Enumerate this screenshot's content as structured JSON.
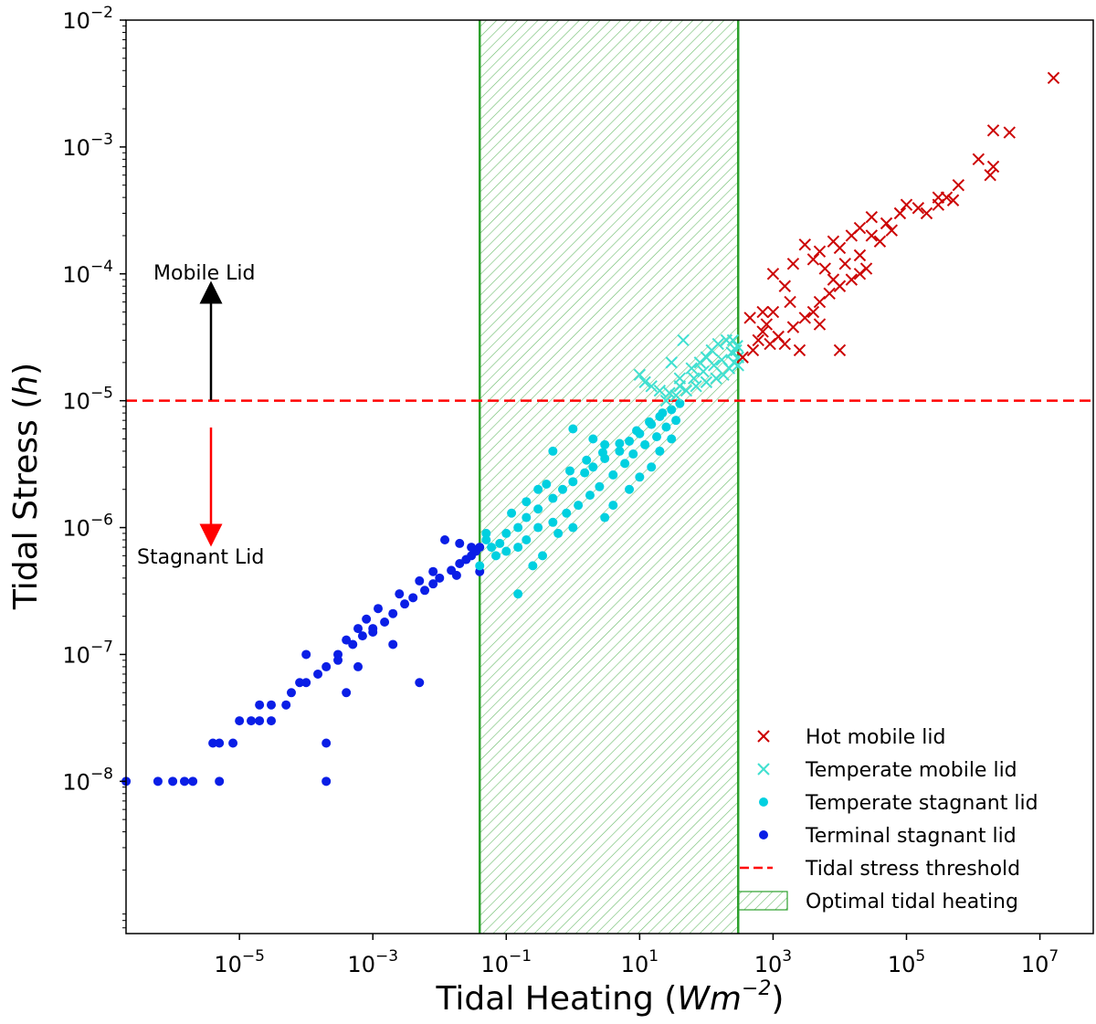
{
  "chart_data": {
    "type": "scatter",
    "xscale": "log",
    "yscale": "log",
    "xlim_exp": [
      -6.7,
      7.8
    ],
    "ylim_exp": [
      -9.2,
      -2
    ],
    "xlabel": {
      "main": "Tidal Heating (",
      "unit_base": "Wm",
      "unit_exp": "−2",
      "close": ")"
    },
    "ylabel": {
      "main": "Tidal Stress (",
      "var": "h",
      "close": ")"
    },
    "xticks": [
      {
        "base": "10",
        "exp": "−5",
        "value": 1e-05
      },
      {
        "base": "10",
        "exp": "−3",
        "value": 0.001
      },
      {
        "base": "10",
        "exp": "−1",
        "value": 0.1
      },
      {
        "base": "10",
        "exp": "1",
        "value": 10.0
      },
      {
        "base": "10",
        "exp": "3",
        "value": 1000.0
      },
      {
        "base": "10",
        "exp": "5",
        "value": 100000.0
      },
      {
        "base": "10",
        "exp": "7",
        "value": 10000000.0
      }
    ],
    "yticks": [
      {
        "base": "10",
        "exp": "−8",
        "value": 1e-08
      },
      {
        "base": "10",
        "exp": "−7",
        "value": 1e-07
      },
      {
        "base": "10",
        "exp": "−6",
        "value": 1e-06
      },
      {
        "base": "10",
        "exp": "−5",
        "value": 1e-05
      },
      {
        "base": "10",
        "exp": "−4",
        "value": 0.0001
      },
      {
        "base": "10",
        "exp": "−3",
        "value": 0.001
      },
      {
        "base": "10",
        "exp": "−2",
        "value": 0.01
      }
    ],
    "threshold": {
      "y": 1e-05,
      "label": "Tidal stress threshold",
      "color": "#ff0000"
    },
    "optimal_band": {
      "x_min": 0.04,
      "x_max": 300,
      "label": "Optimal tidal heating",
      "color": "#2ca02c"
    },
    "annotations": {
      "mobile": {
        "text": "Mobile Lid",
        "color": "#000000"
      },
      "stagnant": {
        "text": "Stagnant Lid",
        "color": "#ff0000"
      }
    },
    "series": [
      {
        "name": "Hot mobile lid",
        "marker": "x",
        "color": "#cc0000",
        "points": [
          [
            16000000.0,
            0.0035
          ],
          [
            3500000.0,
            0.0013
          ],
          [
            2000000.0,
            0.00135
          ],
          [
            1200000.0,
            0.0008
          ],
          [
            2000000.0,
            0.0007
          ],
          [
            1800000.0,
            0.0006
          ],
          [
            600000.0,
            0.0005
          ],
          [
            300000.0,
            0.0004
          ],
          [
            400000.0,
            0.0004
          ],
          [
            500000.0,
            0.00038
          ],
          [
            300000.0,
            0.00035
          ],
          [
            200000.0,
            0.0003
          ],
          [
            100000.0,
            0.00035
          ],
          [
            150000.0,
            0.00033
          ],
          [
            80000.0,
            0.0003
          ],
          [
            50000.0,
            0.00025
          ],
          [
            30000.0,
            0.00028
          ],
          [
            20000.0,
            0.00023
          ],
          [
            15000.0,
            0.0002
          ],
          [
            8000.0,
            0.00018
          ],
          [
            5000.0,
            0.00015
          ],
          [
            10000.0,
            0.00016
          ],
          [
            30000.0,
            0.0002
          ],
          [
            60000.0,
            0.00022
          ],
          [
            3000.0,
            0.00017
          ],
          [
            4000.0,
            0.00013
          ],
          [
            2000.0,
            0.00012
          ],
          [
            1000.0,
            0.0001
          ],
          [
            8000.0,
            9e-05
          ],
          [
            6000.0,
            0.00011
          ],
          [
            12000.0,
            0.00012
          ],
          [
            20000.0,
            0.00014
          ],
          [
            40000.0,
            0.00018
          ],
          [
            1500.0,
            8e-05
          ],
          [
            1000.0,
            5e-05
          ],
          [
            800,
            4e-05
          ],
          [
            700,
            3.5e-05
          ],
          [
            600,
            3e-05
          ],
          [
            500,
            2.5e-05
          ],
          [
            900,
            2.8e-05
          ],
          [
            1200.0,
            3.2e-05
          ],
          [
            2000.0,
            3.8e-05
          ],
          [
            3000.0,
            4.5e-05
          ],
          [
            4000.0,
            5e-05
          ],
          [
            5000.0,
            6e-05
          ],
          [
            7000.0,
            7e-05
          ],
          [
            10000.0,
            8e-05
          ],
          [
            15000.0,
            9e-05
          ],
          [
            20000.0,
            0.0001
          ],
          [
            25000.0,
            0.00011
          ],
          [
            700,
            5e-05
          ],
          [
            450,
            4.5e-05
          ],
          [
            1800.0,
            6e-05
          ],
          [
            2500.0,
            2.5e-05
          ],
          [
            10000.0,
            2.5e-05
          ],
          [
            5000.0,
            4e-05
          ],
          [
            350.0,
            2.2e-05
          ],
          [
            1500.0,
            2.8e-05
          ]
        ]
      },
      {
        "name": "Temperate mobile lid",
        "marker": "x",
        "color": "#40e0d0",
        "points": [
          [
            40,
            1.5e-05
          ],
          [
            60,
            1.8e-05
          ],
          [
            80,
            2e-05
          ],
          [
            100,
            2.2e-05
          ],
          [
            120,
            2.5e-05
          ],
          [
            150,
            2.8e-05
          ],
          [
            200,
            3e-05
          ],
          [
            250,
            3e-05
          ],
          [
            280,
            2.5e-05
          ],
          [
            300,
            2.2e-05
          ],
          [
            260,
            2e-05
          ],
          [
            220,
            1.8e-05
          ],
          [
            180,
            1.6e-05
          ],
          [
            140,
            1.5e-05
          ],
          [
            100,
            1.4e-05
          ],
          [
            70,
            1.3e-05
          ],
          [
            50,
            1.2e-05
          ],
          [
            35,
            1.1e-05
          ],
          [
            25,
            1e-05
          ],
          [
            30,
            2e-05
          ],
          [
            45,
            3e-05
          ],
          [
            10,
            1.6e-05
          ],
          [
            12,
            1.4e-05
          ],
          [
            15,
            1.3e-05
          ],
          [
            20,
            1.2e-05
          ],
          [
            300,
            1.9e-05
          ],
          [
            290,
            2.7e-05
          ],
          [
            240,
            2.4e-05
          ],
          [
            170,
            2.1e-05
          ],
          [
            130,
            1.9e-05
          ],
          [
            90,
            1.7e-05
          ],
          [
            65,
            1.5e-05
          ],
          [
            40,
            1.3e-05
          ],
          [
            28,
            1.15e-05
          ]
        ]
      },
      {
        "name": "Temperate stagnant lid",
        "marker": "o",
        "color": "#00d0e0",
        "points": [
          [
            0.05,
            8e-07
          ],
          [
            0.06,
            7e-07
          ],
          [
            0.08,
            7.5e-07
          ],
          [
            0.1,
            9e-07
          ],
          [
            0.15,
            1e-06
          ],
          [
            0.2,
            1.2e-06
          ],
          [
            0.3,
            1.4e-06
          ],
          [
            0.5,
            1.7e-06
          ],
          [
            0.7,
            2e-06
          ],
          [
            1,
            2.3e-06
          ],
          [
            1.5,
            2.7e-06
          ],
          [
            2,
            3e-06
          ],
          [
            3,
            3.5e-06
          ],
          [
            5,
            4e-06
          ],
          [
            7,
            4.8e-06
          ],
          [
            10,
            5.5e-06
          ],
          [
            15,
            6.5e-06
          ],
          [
            20,
            7.5e-06
          ],
          [
            30,
            8.5e-06
          ],
          [
            40,
            9.5e-06
          ],
          [
            0.07,
            6e-07
          ],
          [
            0.1,
            6.5e-07
          ],
          [
            0.15,
            7e-07
          ],
          [
            0.2,
            8e-07
          ],
          [
            0.25,
            5e-07
          ],
          [
            0.35,
            6e-07
          ],
          [
            0.5,
            1.1e-06
          ],
          [
            0.8,
            1.3e-06
          ],
          [
            1.2,
            1.5e-06
          ],
          [
            1.8,
            1.8e-06
          ],
          [
            2.5,
            2.1e-06
          ],
          [
            4,
            2.6e-06
          ],
          [
            6,
            3.2e-06
          ],
          [
            8,
            3.8e-06
          ],
          [
            12,
            4.5e-06
          ],
          [
            18,
            5.2e-06
          ],
          [
            25,
            6.2e-06
          ],
          [
            35,
            7e-06
          ],
          [
            0.3,
            2e-06
          ],
          [
            0.5,
            4e-06
          ],
          [
            1,
            6e-06
          ],
          [
            2,
            5e-06
          ],
          [
            3,
            4.5e-06
          ],
          [
            0.15,
            3e-07
          ],
          [
            0.05,
            9e-07
          ],
          [
            0.04,
            5e-07
          ],
          [
            0.3,
            1e-06
          ],
          [
            0.6,
            9e-07
          ],
          [
            1,
            1e-06
          ],
          [
            4,
            1.5e-06
          ],
          [
            15,
            3e-06
          ],
          [
            10,
            2.5e-06
          ],
          [
            20,
            4e-06
          ],
          [
            0.2,
            1.6e-06
          ],
          [
            0.4,
            2.2e-06
          ],
          [
            0.9,
            2.8e-06
          ],
          [
            1.6,
            3.4e-06
          ],
          [
            2.8,
            3.9e-06
          ],
          [
            5,
            4.6e-06
          ],
          [
            9,
            5.8e-06
          ],
          [
            14,
            6.8e-06
          ],
          [
            22,
            8e-06
          ],
          [
            0.12,
            1.3e-06
          ],
          [
            7,
            2e-06
          ],
          [
            30,
            5e-06
          ],
          [
            3,
            1.2e-06
          ]
        ]
      },
      {
        "name": "Terminal stagnant lid",
        "marker": "o",
        "color": "#0a1ee6",
        "points": [
          [
            2e-07,
            1e-08
          ],
          [
            6e-07,
            1e-08
          ],
          [
            1e-06,
            1e-08
          ],
          [
            1.5e-06,
            1e-08
          ],
          [
            2e-06,
            1e-08
          ],
          [
            5e-06,
            1e-08
          ],
          [
            0.0002,
            1e-08
          ],
          [
            4e-06,
            2e-08
          ],
          [
            5e-06,
            2e-08
          ],
          [
            8e-06,
            2e-08
          ],
          [
            0.0002,
            2e-08
          ],
          [
            1e-05,
            3e-08
          ],
          [
            1.5e-05,
            3e-08
          ],
          [
            2e-05,
            3e-08
          ],
          [
            3e-05,
            3e-08
          ],
          [
            2e-05,
            4e-08
          ],
          [
            3e-05,
            4e-08
          ],
          [
            5e-05,
            4e-08
          ],
          [
            6e-05,
            5e-08
          ],
          [
            8e-05,
            6e-08
          ],
          [
            0.0001,
            6e-08
          ],
          [
            0.00015,
            7e-08
          ],
          [
            0.0002,
            8e-08
          ],
          [
            0.0003,
            9e-08
          ],
          [
            0.0003,
            1e-07
          ],
          [
            0.0005,
            1.2e-07
          ],
          [
            0.0007,
            1.4e-07
          ],
          [
            0.001,
            1.6e-07
          ],
          [
            0.0015,
            1.8e-07
          ],
          [
            0.002,
            2.1e-07
          ],
          [
            0.003,
            2.5e-07
          ],
          [
            0.004,
            2.8e-07
          ],
          [
            0.006,
            3.2e-07
          ],
          [
            0.008,
            3.6e-07
          ],
          [
            0.01,
            4e-07
          ],
          [
            0.015,
            4.6e-07
          ],
          [
            0.02,
            5.2e-07
          ],
          [
            0.025,
            5.6e-07
          ],
          [
            0.03,
            6e-07
          ],
          [
            0.035,
            6.5e-07
          ],
          [
            0.04,
            7e-07
          ],
          [
            0.0004,
            1.3e-07
          ],
          [
            0.0006,
            1.6e-07
          ],
          [
            0.0008,
            1.9e-07
          ],
          [
            0.0012,
            2.3e-07
          ],
          [
            0.0025,
            3e-07
          ],
          [
            0.005,
            3.8e-07
          ],
          [
            0.012,
            8e-07
          ],
          [
            0.02,
            7.5e-07
          ],
          [
            0.03,
            7e-07
          ],
          [
            0.002,
            1.2e-07
          ],
          [
            0.001,
            1.5e-07
          ],
          [
            0.0001,
            1e-07
          ],
          [
            0.0004,
            5e-08
          ],
          [
            0.0006,
            8e-08
          ],
          [
            0.005,
            6e-08
          ],
          [
            0.008,
            4.5e-07
          ],
          [
            0.018,
            4.2e-07
          ],
          [
            0.04,
            4.5e-07
          ]
        ]
      }
    ]
  }
}
